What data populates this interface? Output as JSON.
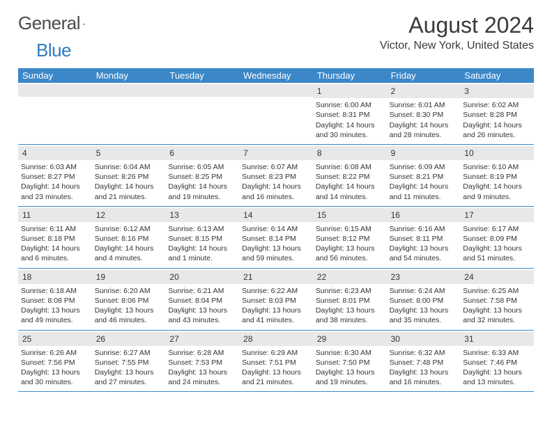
{
  "logo": {
    "text1": "General",
    "text2": "Blue"
  },
  "title": "August 2024",
  "location": "Victor, New York, United States",
  "colors": {
    "header_bg": "#3b87c8",
    "daynum_bg": "#e8e8e8",
    "text": "#333333",
    "accent": "#2e7cc2"
  },
  "weekdays": [
    "Sunday",
    "Monday",
    "Tuesday",
    "Wednesday",
    "Thursday",
    "Friday",
    "Saturday"
  ],
  "weeks": [
    [
      {
        "day": "",
        "sunrise": "",
        "sunset": "",
        "daylight1": "",
        "daylight2": ""
      },
      {
        "day": "",
        "sunrise": "",
        "sunset": "",
        "daylight1": "",
        "daylight2": ""
      },
      {
        "day": "",
        "sunrise": "",
        "sunset": "",
        "daylight1": "",
        "daylight2": ""
      },
      {
        "day": "",
        "sunrise": "",
        "sunset": "",
        "daylight1": "",
        "daylight2": ""
      },
      {
        "day": "1",
        "sunrise": "Sunrise: 6:00 AM",
        "sunset": "Sunset: 8:31 PM",
        "daylight1": "Daylight: 14 hours",
        "daylight2": "and 30 minutes."
      },
      {
        "day": "2",
        "sunrise": "Sunrise: 6:01 AM",
        "sunset": "Sunset: 8:30 PM",
        "daylight1": "Daylight: 14 hours",
        "daylight2": "and 28 minutes."
      },
      {
        "day": "3",
        "sunrise": "Sunrise: 6:02 AM",
        "sunset": "Sunset: 8:28 PM",
        "daylight1": "Daylight: 14 hours",
        "daylight2": "and 26 minutes."
      }
    ],
    [
      {
        "day": "4",
        "sunrise": "Sunrise: 6:03 AM",
        "sunset": "Sunset: 8:27 PM",
        "daylight1": "Daylight: 14 hours",
        "daylight2": "and 23 minutes."
      },
      {
        "day": "5",
        "sunrise": "Sunrise: 6:04 AM",
        "sunset": "Sunset: 8:26 PM",
        "daylight1": "Daylight: 14 hours",
        "daylight2": "and 21 minutes."
      },
      {
        "day": "6",
        "sunrise": "Sunrise: 6:05 AM",
        "sunset": "Sunset: 8:25 PM",
        "daylight1": "Daylight: 14 hours",
        "daylight2": "and 19 minutes."
      },
      {
        "day": "7",
        "sunrise": "Sunrise: 6:07 AM",
        "sunset": "Sunset: 8:23 PM",
        "daylight1": "Daylight: 14 hours",
        "daylight2": "and 16 minutes."
      },
      {
        "day": "8",
        "sunrise": "Sunrise: 6:08 AM",
        "sunset": "Sunset: 8:22 PM",
        "daylight1": "Daylight: 14 hours",
        "daylight2": "and 14 minutes."
      },
      {
        "day": "9",
        "sunrise": "Sunrise: 6:09 AM",
        "sunset": "Sunset: 8:21 PM",
        "daylight1": "Daylight: 14 hours",
        "daylight2": "and 11 minutes."
      },
      {
        "day": "10",
        "sunrise": "Sunrise: 6:10 AM",
        "sunset": "Sunset: 8:19 PM",
        "daylight1": "Daylight: 14 hours",
        "daylight2": "and 9 minutes."
      }
    ],
    [
      {
        "day": "11",
        "sunrise": "Sunrise: 6:11 AM",
        "sunset": "Sunset: 8:18 PM",
        "daylight1": "Daylight: 14 hours",
        "daylight2": "and 6 minutes."
      },
      {
        "day": "12",
        "sunrise": "Sunrise: 6:12 AM",
        "sunset": "Sunset: 8:16 PM",
        "daylight1": "Daylight: 14 hours",
        "daylight2": "and 4 minutes."
      },
      {
        "day": "13",
        "sunrise": "Sunrise: 6:13 AM",
        "sunset": "Sunset: 8:15 PM",
        "daylight1": "Daylight: 14 hours",
        "daylight2": "and 1 minute."
      },
      {
        "day": "14",
        "sunrise": "Sunrise: 6:14 AM",
        "sunset": "Sunset: 8:14 PM",
        "daylight1": "Daylight: 13 hours",
        "daylight2": "and 59 minutes."
      },
      {
        "day": "15",
        "sunrise": "Sunrise: 6:15 AM",
        "sunset": "Sunset: 8:12 PM",
        "daylight1": "Daylight: 13 hours",
        "daylight2": "and 56 minutes."
      },
      {
        "day": "16",
        "sunrise": "Sunrise: 6:16 AM",
        "sunset": "Sunset: 8:11 PM",
        "daylight1": "Daylight: 13 hours",
        "daylight2": "and 54 minutes."
      },
      {
        "day": "17",
        "sunrise": "Sunrise: 6:17 AM",
        "sunset": "Sunset: 8:09 PM",
        "daylight1": "Daylight: 13 hours",
        "daylight2": "and 51 minutes."
      }
    ],
    [
      {
        "day": "18",
        "sunrise": "Sunrise: 6:18 AM",
        "sunset": "Sunset: 8:08 PM",
        "daylight1": "Daylight: 13 hours",
        "daylight2": "and 49 minutes."
      },
      {
        "day": "19",
        "sunrise": "Sunrise: 6:20 AM",
        "sunset": "Sunset: 8:06 PM",
        "daylight1": "Daylight: 13 hours",
        "daylight2": "and 46 minutes."
      },
      {
        "day": "20",
        "sunrise": "Sunrise: 6:21 AM",
        "sunset": "Sunset: 8:04 PM",
        "daylight1": "Daylight: 13 hours",
        "daylight2": "and 43 minutes."
      },
      {
        "day": "21",
        "sunrise": "Sunrise: 6:22 AM",
        "sunset": "Sunset: 8:03 PM",
        "daylight1": "Daylight: 13 hours",
        "daylight2": "and 41 minutes."
      },
      {
        "day": "22",
        "sunrise": "Sunrise: 6:23 AM",
        "sunset": "Sunset: 8:01 PM",
        "daylight1": "Daylight: 13 hours",
        "daylight2": "and 38 minutes."
      },
      {
        "day": "23",
        "sunrise": "Sunrise: 6:24 AM",
        "sunset": "Sunset: 8:00 PM",
        "daylight1": "Daylight: 13 hours",
        "daylight2": "and 35 minutes."
      },
      {
        "day": "24",
        "sunrise": "Sunrise: 6:25 AM",
        "sunset": "Sunset: 7:58 PM",
        "daylight1": "Daylight: 13 hours",
        "daylight2": "and 32 minutes."
      }
    ],
    [
      {
        "day": "25",
        "sunrise": "Sunrise: 6:26 AM",
        "sunset": "Sunset: 7:56 PM",
        "daylight1": "Daylight: 13 hours",
        "daylight2": "and 30 minutes."
      },
      {
        "day": "26",
        "sunrise": "Sunrise: 6:27 AM",
        "sunset": "Sunset: 7:55 PM",
        "daylight1": "Daylight: 13 hours",
        "daylight2": "and 27 minutes."
      },
      {
        "day": "27",
        "sunrise": "Sunrise: 6:28 AM",
        "sunset": "Sunset: 7:53 PM",
        "daylight1": "Daylight: 13 hours",
        "daylight2": "and 24 minutes."
      },
      {
        "day": "28",
        "sunrise": "Sunrise: 6:29 AM",
        "sunset": "Sunset: 7:51 PM",
        "daylight1": "Daylight: 13 hours",
        "daylight2": "and 21 minutes."
      },
      {
        "day": "29",
        "sunrise": "Sunrise: 6:30 AM",
        "sunset": "Sunset: 7:50 PM",
        "daylight1": "Daylight: 13 hours",
        "daylight2": "and 19 minutes."
      },
      {
        "day": "30",
        "sunrise": "Sunrise: 6:32 AM",
        "sunset": "Sunset: 7:48 PM",
        "daylight1": "Daylight: 13 hours",
        "daylight2": "and 16 minutes."
      },
      {
        "day": "31",
        "sunrise": "Sunrise: 6:33 AM",
        "sunset": "Sunset: 7:46 PM",
        "daylight1": "Daylight: 13 hours",
        "daylight2": "and 13 minutes."
      }
    ]
  ]
}
